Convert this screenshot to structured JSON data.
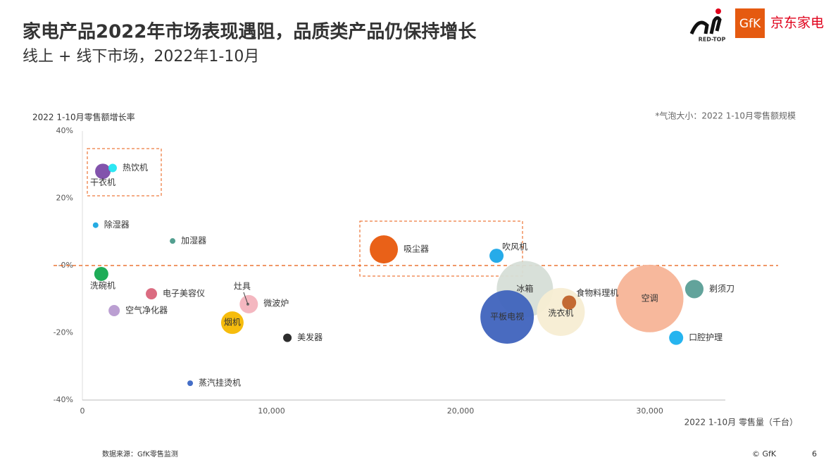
{
  "chart_data": {
    "type": "bubble",
    "title": "家电产品2022年市场表现遇阻，品质类产品仍保持增长",
    "subtitle": "线上 + 线下市场，2022年1-10月",
    "y_label": "2022 1-10月零售额增长率",
    "x_label": "2022 1-10月 零售量（千台）",
    "size_note": "*气泡大小：2022 1-10月零售额规模",
    "source": "数据来源：GfK零售监测",
    "copyright": "© GfK",
    "page_number": "6",
    "logos": [
      "RED-TOP",
      "GfK",
      "京东家电"
    ],
    "xlim": [
      0,
      34000
    ],
    "ylim": [
      -40,
      40
    ],
    "xticks": [
      0,
      {
        "value": 10000,
        "label": "10,000"
      },
      {
        "value": 20000,
        "label": "20,000"
      },
      {
        "value": 30000,
        "label": "30,000"
      }
    ],
    "yticks": [
      {
        "value": 40,
        "label": "40%"
      },
      {
        "value": 20,
        "label": "20%"
      },
      {
        "value": 0,
        "label": "-0%"
      },
      {
        "value": -20,
        "label": "-20%"
      },
      {
        "value": -40,
        "label": "-40%"
      }
    ],
    "reference_line": 0,
    "series": [
      {
        "name": "冰箱",
        "color": "#d6ded7",
        "x": [
          23400
        ],
        "values": [
          -7
        ],
        "sizes": [
          1600
        ]
      },
      {
        "name": "平板电视",
        "color": "#3f63bd",
        "x": [
          22460
        ],
        "values": [
          -15.3
        ],
        "sizes": [
          1440
        ]
      },
      {
        "name": "洗衣机",
        "color": "#f7edd3",
        "x": [
          25300
        ],
        "values": [
          -13.8
        ],
        "sizes": [
          1160
        ]
      },
      {
        "name": "空调",
        "color": "#f7b497",
        "x": [
          30000
        ],
        "values": [
          -9.8
        ],
        "sizes": [
          2300
        ]
      },
      {
        "name": "食物料理机",
        "color": "#c0622a",
        "x": [
          25740
        ],
        "values": [
          -11
        ],
        "sizes": [
          100
        ]
      },
      {
        "name": "剃须刀",
        "color": "#5a9e96",
        "x": [
          32360
        ],
        "values": [
          -7
        ],
        "sizes": [
          170
        ]
      },
      {
        "name": "口腔护理",
        "color": "#1ab0ee",
        "x": [
          31400
        ],
        "values": [
          -21.5
        ],
        "sizes": [
          100
        ]
      },
      {
        "name": "吸尘器",
        "color": "#e8590c",
        "x": [
          15940
        ],
        "values": [
          4.8
        ],
        "sizes": [
          400
        ]
      },
      {
        "name": "吹风机",
        "color": "#1aa6e8",
        "x": [
          21900
        ],
        "values": [
          2.9
        ],
        "sizes": [
          100
        ]
      },
      {
        "name": "干衣机",
        "color": "#7b4aa8",
        "x": [
          1080
        ],
        "values": [
          28
        ],
        "sizes": [
          120
        ]
      },
      {
        "name": "热饮机",
        "color": "#22e6f2",
        "x": [
          1600
        ],
        "values": [
          29
        ],
        "sizes": [
          36
        ]
      },
      {
        "name": "除湿器",
        "color": "#1aa6e0",
        "x": [
          700
        ],
        "values": [
          12
        ],
        "sizes": [
          16
        ]
      },
      {
        "name": "加湿器",
        "color": "#4a9a8a",
        "x": [
          4770
        ],
        "values": [
          7.3
        ],
        "sizes": [
          16
        ]
      },
      {
        "name": "洗碗机",
        "color": "#12a84e",
        "x": [
          1000
        ],
        "values": [
          -2.5
        ],
        "sizes": [
          100
        ]
      },
      {
        "name": "电子美容仪",
        "color": "#d9647a",
        "x": [
          3650
        ],
        "values": [
          -8.4
        ],
        "sizes": [
          64
        ]
      },
      {
        "name": "空气净化器",
        "color": "#b79ad0",
        "x": [
          1680
        ],
        "values": [
          -13.4
        ],
        "sizes": [
          64
        ]
      },
      {
        "name": "微波炉",
        "color": "#f3b3bd",
        "x": [
          8800
        ],
        "values": [
          -11.5
        ],
        "sizes": [
          169
        ]
      },
      {
        "name": "灶具",
        "color": "#666666",
        "x": [
          8750
        ],
        "values": [
          -11.5
        ],
        "sizes": [
          4
        ]
      },
      {
        "name": "烟机",
        "color": "#f5b800",
        "x": [
          7930
        ],
        "values": [
          -17
        ],
        "sizes": [
          256
        ]
      },
      {
        "name": "美发器",
        "color": "#222222",
        "x": [
          10840
        ],
        "values": [
          -21.5
        ],
        "sizes": [
          36
        ]
      },
      {
        "name": "蒸汽挂烫机",
        "color": "#3a66c4",
        "x": [
          5700
        ],
        "values": [
          -35
        ],
        "sizes": [
          16
        ]
      }
    ]
  }
}
